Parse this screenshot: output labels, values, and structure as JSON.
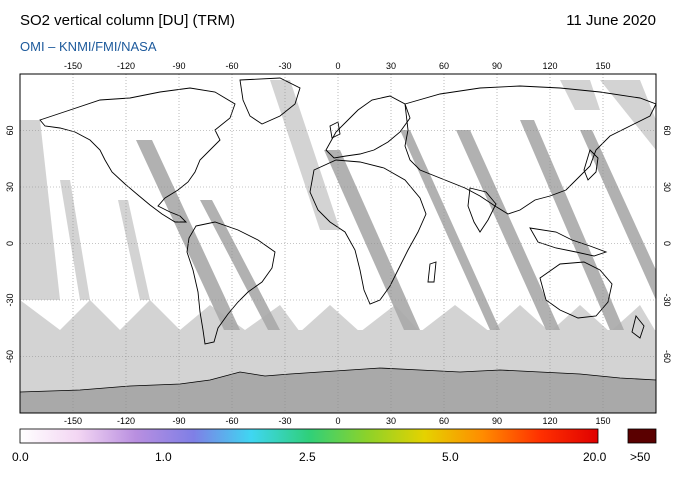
{
  "header": {
    "title": "SO2 vertical column [DU] (TRM)",
    "date": "11 June 2020",
    "credit": "OMI  –  KNMI/FMI/NASA"
  },
  "map": {
    "projection": "equirectangular",
    "lon_range": [
      -180,
      180
    ],
    "lat_range": [
      -90,
      90
    ],
    "lon_ticks": [
      -150,
      -120,
      -90,
      -60,
      -30,
      0,
      30,
      60,
      90,
      120,
      150
    ],
    "lat_ticks": [
      60,
      30,
      0,
      -30,
      -60
    ],
    "colors": {
      "no_data": "#d3d3d3",
      "ocean_background": "#ffffff",
      "coast": "#000000",
      "swath_gap": "#a9a9a9",
      "grid": "#8c8c8c"
    }
  },
  "colorbar": {
    "labels": [
      "0.0",
      "1.0",
      "2.5",
      "5.0",
      "20.0"
    ],
    "overflow_label": ">50",
    "overflow_color": "#5a0000",
    "gradient": [
      "#ffffff",
      "#f3d6f3",
      "#b98fe0",
      "#7f7fe6",
      "#3fd6f2",
      "#2fd07a",
      "#8cd22a",
      "#e5d200",
      "#ff8c00",
      "#ff3000",
      "#e00000"
    ]
  }
}
